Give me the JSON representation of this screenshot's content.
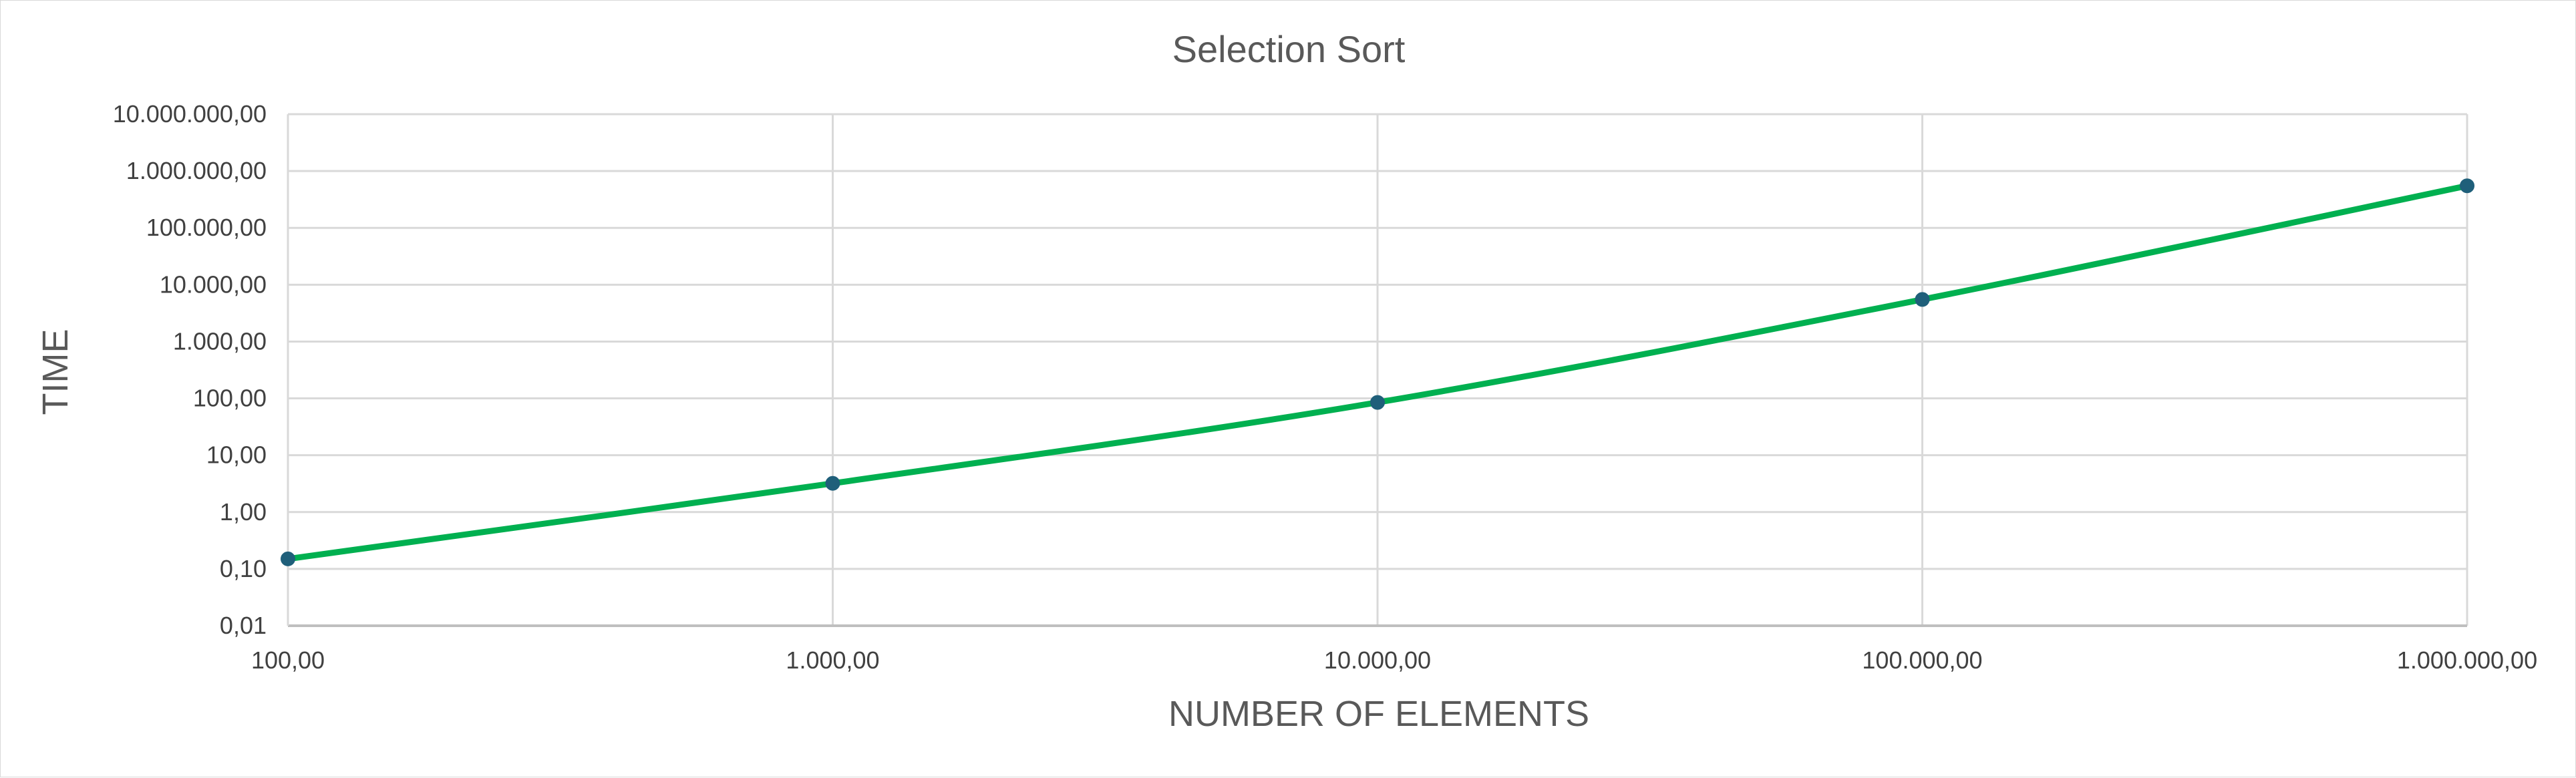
{
  "chart_data": {
    "type": "line",
    "title": "Selection Sort",
    "xlabel": "NUMBER OF ELEMENTS",
    "ylabel": "TIME",
    "x_scale": "log",
    "y_scale": "log",
    "xlim": [
      100,
      1000000
    ],
    "ylim": [
      0.01,
      10000000
    ],
    "x_ticks": [
      100,
      1000,
      10000,
      100000,
      1000000
    ],
    "x_tick_labels": [
      "100,00",
      "1.000,00",
      "10.000,00",
      "100.000,00",
      "1.000.000,00"
    ],
    "y_ticks": [
      0.01,
      0.1,
      1,
      10,
      100,
      1000,
      10000,
      100000,
      1000000,
      10000000
    ],
    "y_tick_labels": [
      "0,01",
      "0,10",
      "1,00",
      "10,00",
      "100,00",
      "1.000,00",
      "10.000,00",
      "100.000,00",
      "1.000.000,00",
      "10.000.000,00"
    ],
    "grid": true,
    "legend": "none",
    "series": [
      {
        "x": [
          100,
          1000,
          10000,
          100000,
          1000000
        ],
        "y": [
          0.15,
          3.2,
          85,
          5500,
          550000
        ],
        "line_color": "#00b050",
        "marker_color": "#1f5f7a",
        "smooth": true
      }
    ]
  }
}
